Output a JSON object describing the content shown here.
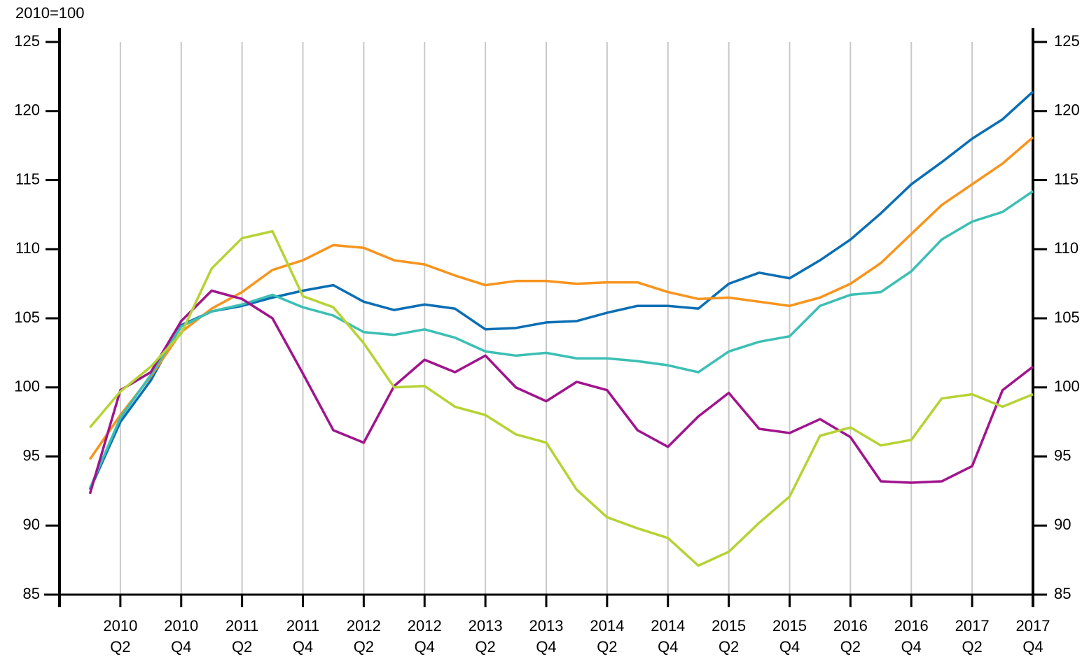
{
  "chart_data": {
    "type": "line",
    "y_label": "2010=100",
    "categories": [
      null,
      "2010\nQ2",
      null,
      "2010\nQ4",
      null,
      "2011\nQ2",
      null,
      "2011\nQ4",
      null,
      "2012\nQ2",
      null,
      "2012\nQ4",
      null,
      "2013\nQ2",
      null,
      "2013\nQ4",
      null,
      "2014\nQ2",
      null,
      "2014\nQ4",
      null,
      "2015\nQ2",
      null,
      "2015\nQ4",
      null,
      "2016\nQ2",
      null,
      "2016\nQ4",
      null,
      "2017\nQ2",
      null,
      "2017\nQ4"
    ],
    "ylim": [
      85,
      125
    ],
    "yticks": [
      85,
      90,
      95,
      100,
      105,
      110,
      115,
      120,
      125
    ],
    "right_axis": true,
    "grid": true,
    "series": [
      {
        "color": "#0a6eb4",
        "values": [
          92.6,
          97.5,
          100.5,
          104.5,
          105.5,
          105.9,
          106.5,
          107.0,
          107.4,
          106.2,
          105.6,
          106.0,
          105.7,
          104.2,
          104.3,
          104.7,
          104.8,
          105.4,
          105.9,
          105.9,
          105.7,
          107.5,
          108.3,
          107.9,
          109.2,
          110.7,
          112.6,
          114.7,
          116.3,
          118.0,
          119.4,
          121.4
        ]
      },
      {
        "color": "#f7941d",
        "values": [
          94.8,
          98.0,
          100.8,
          104.0,
          105.7,
          106.9,
          108.5,
          109.2,
          110.3,
          110.1,
          109.2,
          108.9,
          108.1,
          107.4,
          107.7,
          107.7,
          107.5,
          107.6,
          107.6,
          106.9,
          106.4,
          106.5,
          106.2,
          105.9,
          106.5,
          107.5,
          109.0,
          111.1,
          113.2,
          114.7,
          116.2,
          118.1
        ]
      },
      {
        "color": "#3cbfb4",
        "values": [
          92.7,
          97.8,
          100.9,
          104.4,
          105.5,
          106.0,
          106.7,
          105.8,
          105.2,
          104.0,
          103.8,
          104.2,
          103.6,
          102.6,
          102.3,
          102.5,
          102.1,
          102.1,
          101.9,
          101.6,
          101.1,
          102.6,
          103.3,
          103.7,
          105.9,
          106.7,
          106.9,
          108.4,
          110.7,
          112.0,
          112.7,
          114.2
        ]
      },
      {
        "color": "#a0148c",
        "values": [
          92.3,
          99.8,
          101.1,
          104.8,
          107.0,
          106.4,
          105.0,
          101.0,
          96.9,
          96.0,
          100.1,
          102.0,
          101.1,
          102.3,
          100.0,
          99.0,
          100.4,
          99.8,
          96.9,
          95.7,
          97.9,
          99.6,
          97.0,
          96.7,
          97.7,
          96.4,
          93.2,
          93.1,
          93.2,
          94.3,
          99.8,
          101.5
        ]
      },
      {
        "color": "#b5d334",
        "values": [
          97.1,
          99.7,
          101.5,
          103.9,
          108.6,
          110.8,
          111.3,
          106.6,
          105.8,
          103.2,
          100.0,
          100.1,
          98.6,
          98.0,
          96.6,
          96.0,
          92.6,
          90.6,
          89.8,
          89.1,
          87.1,
          88.1,
          90.2,
          92.1,
          96.5,
          97.1,
          95.8,
          96.2,
          99.2,
          99.5,
          98.6,
          99.5
        ]
      }
    ]
  }
}
